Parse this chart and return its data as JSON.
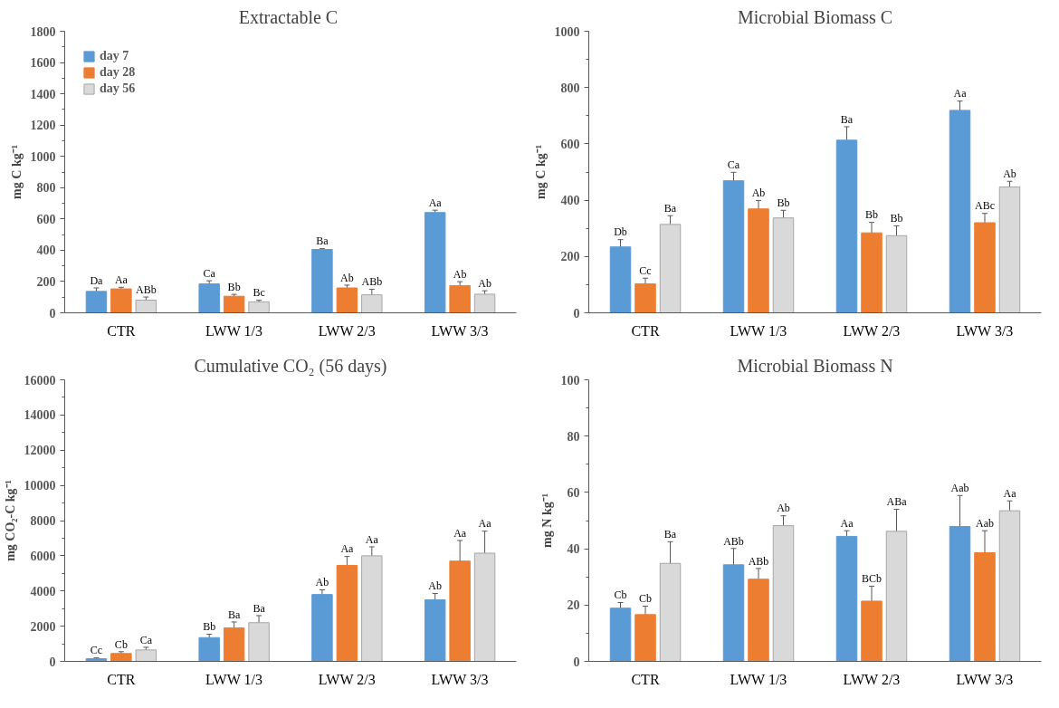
{
  "chart_data": [
    {
      "type": "bar",
      "title": "Extractable  C",
      "ylabel": "mg C kg⁻¹",
      "categories": [
        "CTR",
        "LWW 1/3",
        "LWW 2/3",
        "LWW 3/3"
      ],
      "ylim": [
        0,
        1800
      ],
      "yticks": [
        0,
        200,
        400,
        600,
        800,
        1000,
        1200,
        1400,
        1600,
        1800
      ],
      "grid": false,
      "legend": "top left",
      "series": [
        {
          "name": "day 7",
          "color": "#5b9bd5",
          "values": [
            137,
            185,
            405,
            641
          ],
          "errors": [
            22,
            20,
            5,
            15
          ],
          "value_labels": [
            "Da",
            "Ca",
            "Ba",
            "Aa"
          ]
        },
        {
          "name": "day 28",
          "color": "#ed7d31",
          "values": [
            153,
            106,
            159,
            174
          ],
          "errors": [
            10,
            12,
            18,
            25
          ],
          "value_labels": [
            "Aa",
            "Bb",
            "Ab",
            "Ab"
          ]
        },
        {
          "name": "day 56",
          "color": "#d9d9d9",
          "values": [
            81,
            70,
            115,
            119
          ],
          "errors": [
            20,
            10,
            35,
            22
          ],
          "value_labels": [
            "ABb",
            "Bc",
            "ABb",
            "Ab"
          ]
        }
      ]
    },
    {
      "type": "bar",
      "title": "Microbial Biomass C",
      "ylabel": "mg C kg⁻¹",
      "categories": [
        "CTR",
        "LWW 1/3",
        "LWW 2/3",
        "LWW 3/3"
      ],
      "ylim": [
        0,
        1000
      ],
      "yticks": [
        0,
        200,
        400,
        600,
        800,
        1000
      ],
      "grid": false,
      "series": [
        {
          "color": "#5b9bd5",
          "values": [
            234,
            469,
            613,
            719
          ],
          "errors": [
            26,
            30,
            48,
            33
          ],
          "value_labels": [
            "Db",
            "Ca",
            "Ba",
            "Aa"
          ]
        },
        {
          "color": "#ed7d31",
          "values": [
            103,
            369,
            284,
            320
          ],
          "errors": [
            20,
            30,
            37,
            33
          ],
          "value_labels": [
            "Cc",
            "Ab",
            "Bb",
            "ABc"
          ]
        },
        {
          "color": "#d9d9d9",
          "values": [
            314,
            337,
            274,
            447
          ],
          "errors": [
            31,
            27,
            35,
            20
          ],
          "value_labels": [
            "Ba",
            "Bb",
            "Bb",
            "Ab"
          ]
        }
      ]
    },
    {
      "type": "bar",
      "title": "Cumulative CO₂ (56 days)",
      "ylabel": "mg CO₂-C kg⁻¹",
      "categories": [
        "CTR",
        "LWW 1/3",
        "LWW 2/3",
        "LWW 3/3"
      ],
      "ylim": [
        0,
        16000
      ],
      "yticks": [
        0,
        2000,
        4000,
        6000,
        8000,
        10000,
        12000,
        14000,
        16000
      ],
      "grid": false,
      "series": [
        {
          "color": "#5b9bd5",
          "values": [
            150,
            1350,
            3800,
            3500
          ],
          "errors": [
            50,
            190,
            265,
            360
          ],
          "value_labels": [
            "Cc",
            "Bb",
            "Ab",
            "Ab"
          ]
        },
        {
          "color": "#ed7d31",
          "values": [
            450,
            1900,
            5450,
            5700
          ],
          "errors": [
            100,
            340,
            510,
            1170
          ],
          "value_labels": [
            "Cb",
            "Ba",
            "Aa",
            "Aa"
          ]
        },
        {
          "color": "#d9d9d9",
          "values": [
            650,
            2200,
            6000,
            6150
          ],
          "errors": [
            150,
            400,
            510,
            1250
          ],
          "value_labels": [
            "Ca",
            "Ba",
            "Aa",
            "Aa"
          ]
        }
      ]
    },
    {
      "type": "bar",
      "title": "Microbial Biomass N",
      "ylabel": "mg N kg⁻¹",
      "categories": [
        "CTR",
        "LWW 1/3",
        "LWW 2/3",
        "LWW 3/3"
      ],
      "ylim": [
        0,
        100
      ],
      "yticks": [
        0,
        20,
        40,
        60,
        80,
        100
      ],
      "grid": false,
      "series": [
        {
          "color": "#5b9bd5",
          "values": [
            18.9,
            34.3,
            44.4,
            47.9
          ],
          "errors": [
            2,
            5.8,
            2,
            11
          ],
          "value_labels": [
            "Cb",
            "ABb",
            "Aa",
            "Aab"
          ]
        },
        {
          "color": "#ed7d31",
          "values": [
            16.6,
            29.2,
            21.4,
            38.6
          ],
          "errors": [
            3,
            3.8,
            5.3,
            7.8
          ],
          "value_labels": [
            "Cb",
            "ABb",
            "BCb",
            "Aab"
          ]
        },
        {
          "color": "#d9d9d9",
          "values": [
            34.8,
            48.2,
            46.2,
            53.5
          ],
          "errors": [
            7.7,
            3.5,
            7.8,
            3.5
          ],
          "value_labels": [
            "Ba",
            "Ab",
            "ABa",
            "Aa"
          ]
        }
      ]
    }
  ]
}
